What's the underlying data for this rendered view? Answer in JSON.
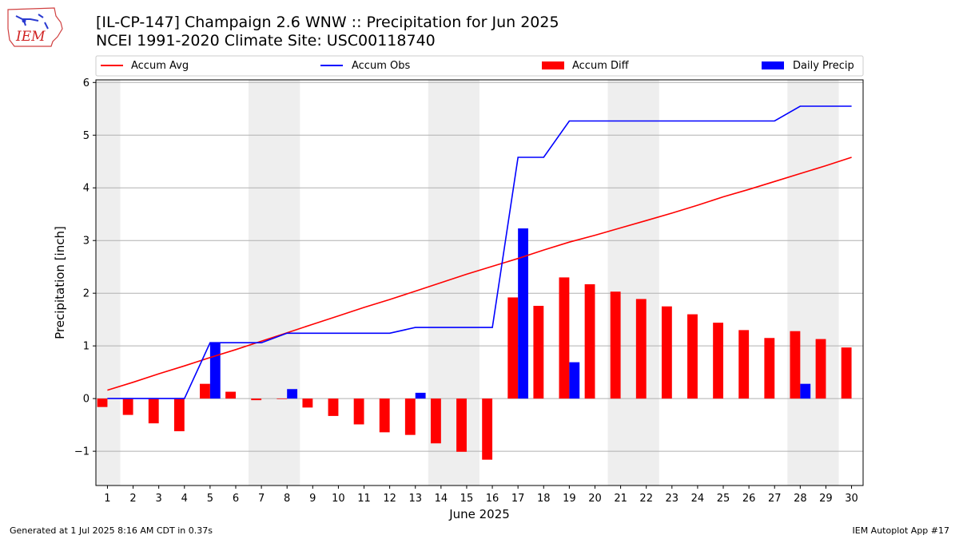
{
  "header": {
    "title_line1": "[IL-CP-147] Champaign 2.6 WNW :: Precipitation for Jun 2025",
    "title_line2": "NCEI 1991-2020 Climate Site: USC00118740",
    "logo_text": "IEM"
  },
  "footer": {
    "generated": "Generated at 1 Jul 2025 8:16 AM CDT in 0.37s",
    "app": "IEM Autoplot App #17"
  },
  "colors": {
    "avg": "#ff0000",
    "obs": "#0000ff",
    "diff": "#ff0000",
    "daily": "#0000ff",
    "weekend_band": "#eeeeee",
    "grid": "#b0b0b0"
  },
  "chart_data": {
    "type": "bar",
    "xlabel": "June 2025",
    "ylabel": "Precipitation [inch]",
    "ylim": [
      -1.65,
      6.05
    ],
    "yticks": [
      -1,
      0,
      1,
      2,
      3,
      4,
      5,
      6
    ],
    "ytick_labels": [
      "−1",
      "0",
      "1",
      "2",
      "3",
      "4",
      "5",
      "6"
    ],
    "grid": "horizontal",
    "legend_position": "top",
    "categories": [
      1,
      2,
      3,
      4,
      5,
      6,
      7,
      8,
      9,
      10,
      11,
      12,
      13,
      14,
      15,
      16,
      17,
      18,
      19,
      20,
      21,
      22,
      23,
      24,
      25,
      26,
      27,
      28,
      29,
      30
    ],
    "shaded_days": [
      [
        0.5,
        1.5
      ],
      [
        6.5,
        8.5
      ],
      [
        13.5,
        15.5
      ],
      [
        20.5,
        22.5
      ],
      [
        27.5,
        29.5
      ]
    ],
    "legend": [
      "Accum Avg",
      "Accum Obs",
      "Accum Diff",
      "Daily Precip"
    ],
    "series": [
      {
        "name": "Accum Avg",
        "kind": "line",
        "values": [
          0.16,
          0.31,
          0.47,
          0.62,
          0.78,
          0.93,
          1.09,
          1.25,
          1.41,
          1.57,
          1.73,
          1.88,
          2.04,
          2.2,
          2.36,
          2.51,
          2.66,
          2.82,
          2.97,
          3.1,
          3.24,
          3.38,
          3.52,
          3.67,
          3.83,
          3.97,
          4.12,
          4.27,
          4.42,
          4.58
        ]
      },
      {
        "name": "Accum Obs",
        "kind": "line",
        "values": [
          0,
          0,
          0,
          0,
          1.06,
          1.06,
          1.06,
          1.24,
          1.24,
          1.24,
          1.24,
          1.24,
          1.35,
          1.35,
          1.35,
          1.35,
          4.58,
          4.58,
          5.27,
          5.27,
          5.27,
          5.27,
          5.27,
          5.27,
          5.27,
          5.27,
          5.27,
          5.55,
          5.55,
          5.55
        ]
      },
      {
        "name": "Accum Diff",
        "kind": "bar",
        "values": [
          -0.16,
          -0.31,
          -0.47,
          -0.62,
          0.28,
          0.13,
          -0.03,
          -0.01,
          -0.17,
          -0.33,
          -0.49,
          -0.64,
          -0.69,
          -0.85,
          -1.01,
          -1.16,
          1.92,
          1.76,
          2.3,
          2.17,
          2.03,
          1.89,
          1.75,
          1.6,
          1.44,
          1.3,
          1.15,
          1.28,
          1.13,
          0.97
        ]
      },
      {
        "name": "Daily Precip",
        "kind": "bar",
        "values": [
          0,
          0,
          0,
          0,
          1.06,
          0,
          0,
          0.18,
          0,
          0,
          0,
          0,
          0.11,
          0,
          0,
          0,
          3.23,
          0,
          0.69,
          0,
          0,
          0,
          0,
          0,
          0,
          0,
          0,
          0.28,
          0,
          0
        ]
      }
    ]
  }
}
